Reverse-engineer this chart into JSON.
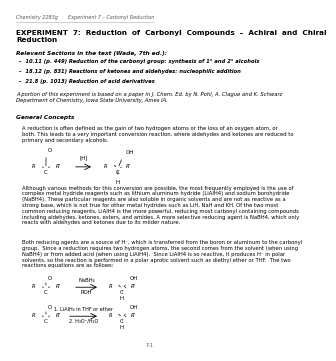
{
  "header_left": "Chemistry 2283g",
  "header_right": "Experiment 7 – Carbonyl Reduction",
  "footer_right": "7-1",
  "title": "EXPERIMENT  7:  Reduction  of  Carbonyl  Compounds  –  Achiral  and  Chiral\nReduction",
  "section_heading": "Relevant Sections in the text (Wade, 7th ed.):",
  "bullets": [
    "10.11 (p. 449) Reduction of the carbonyl group: synthesis of 1° and 2° alcohols",
    "18.12 (p. 831) Reactions of ketones and aldehydes: nucleophilic addition",
    "21.8 (p. 1013) Reduction of acid derivatives"
  ],
  "italic_paragraph": "A portion of this experiment is based on a paper in J. Chem. Ed. by N. Pohl, A. Clague and K. Schwarz\nDepartment of Chemistry, Iowa State University, Ames IA.",
  "general_heading": "General Concepts",
  "para1": "A reduction is often defined as the gain of two hydrogen atoms or the loss of an oxygen atom, or\nboth. This leads to a very important conversion reaction, where aldehydes and ketones are reduced to\nprimary and secondary alcohols.",
  "para2": "Although various methods for this conversion are possible, the most frequently employed is the use of\ncomplex metal hydride reagents such as lithium aluminum hydride (LiAlH4) and sodium borohydride\n(NaBH4). These particular reagents are also soluble in organic solvents and are not as reactive as a\nstrong base, which is not true for other metal hydrides such as LiH, NaH and KH. Of the two most\ncommon reducing reagents, LiAlH4 is the more powerful, reducing most carbonyl containing compounds\nincluding aldehydes, ketones, esters, and amides. A more selective reducing agent is NaBH4, which only\nreacts with aldehydes and ketones due to its milder nature.",
  "para3": "Both reducing agents are a source of H⁻, which is transferred from the boron or aluminum to the carbonyl\ngroup.  Since a reduction requires two hydrogen atoms, the second comes from the solvent (when using\nNaBH4) or from added acid (when using LiAlH4).  Since LiAlH4 is so reactive, it produces H⁻ in polar\nsolvents, so the reaction is performed in a polar aprotic solvent such as diethyl ether or THF.  The two\nreactions equations are as follows:",
  "background_color": "#ffffff",
  "text_color": "#000000",
  "header_color": "#555555",
  "line_color": "#aaaaaa"
}
